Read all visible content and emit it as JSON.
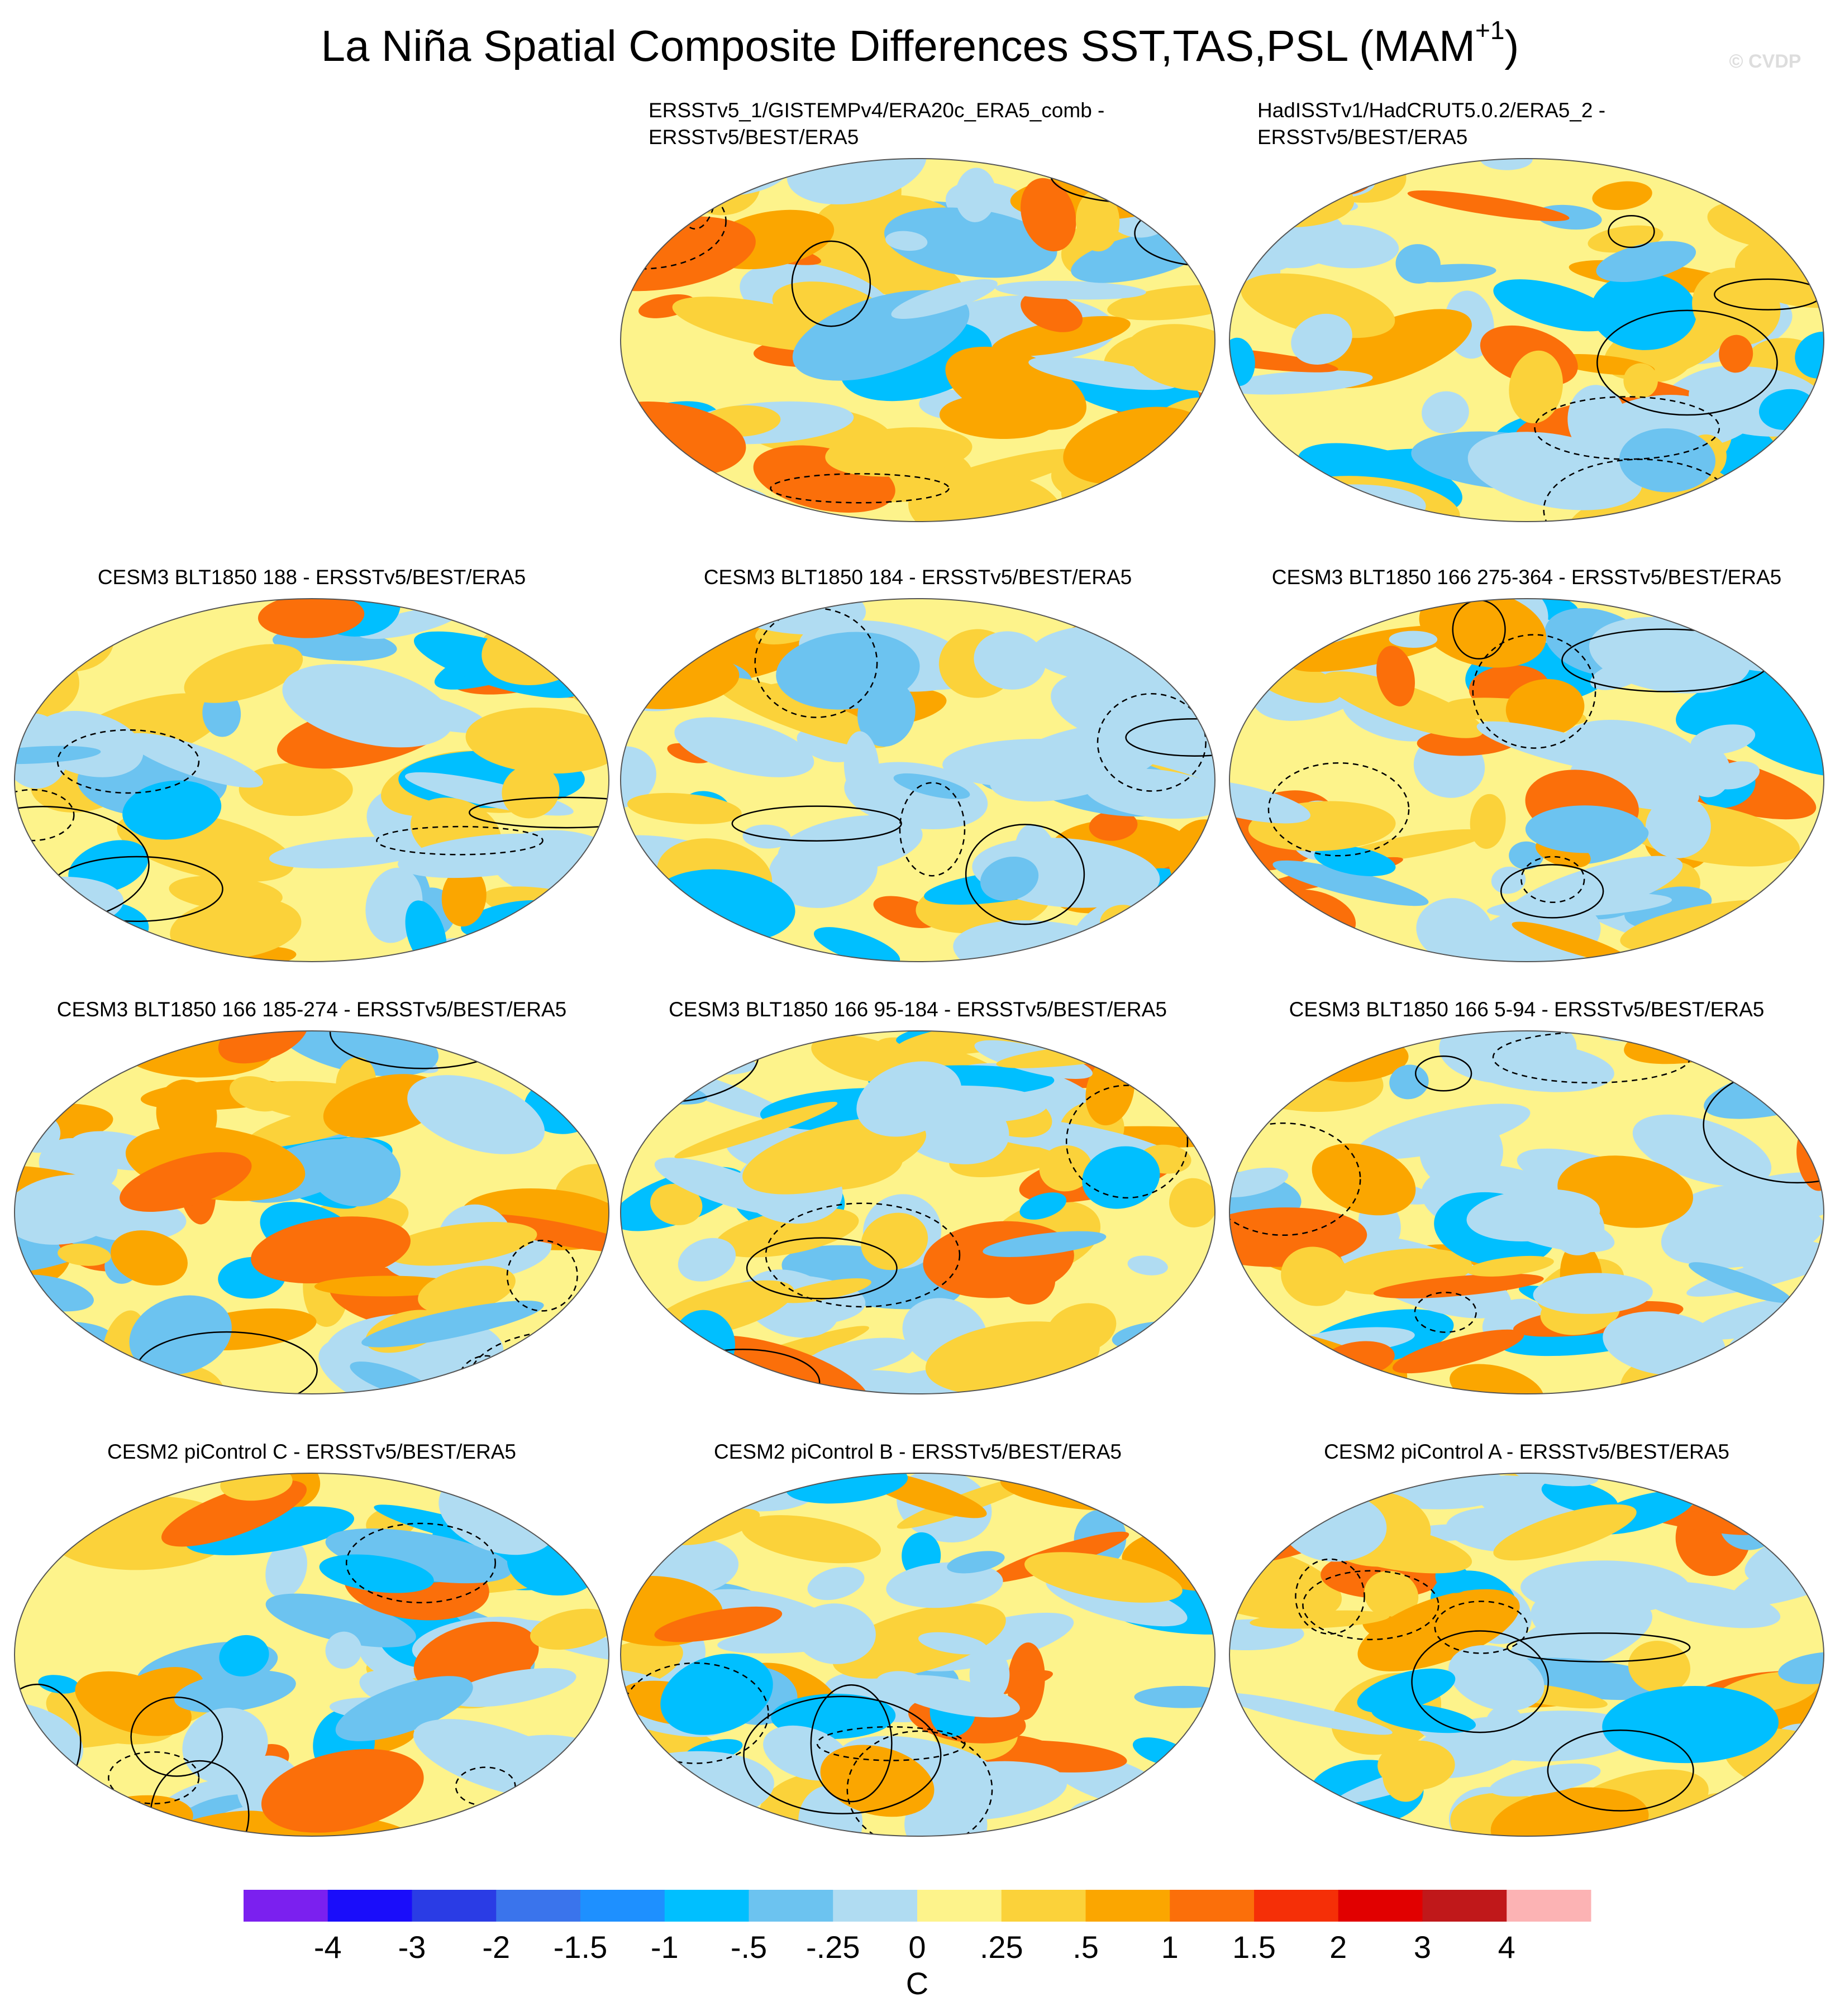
{
  "header": {
    "title": "La Niña Spatial Composite Differences SST,TAS,PSL (MAM",
    "title_superscript": "+1",
    "title_end": ")",
    "watermark": "© CVDP"
  },
  "panels": [
    {
      "title_lines": [
        "ERSSTv5_1/GISTEMPv4/ERA20c_ERA5_comb -",
        "ERSSTv5/BEST/ERA5"
      ]
    },
    {
      "title_lines": [
        "HadISSTv1/HadCRUT5.0.2/ERA5_2 -",
        "ERSSTv5/BEST/ERA5"
      ]
    },
    {
      "title_lines": [
        "CESM3 BLT1850 188 - ERSSTv5/BEST/ERA5"
      ]
    },
    {
      "title_lines": [
        "CESM3 BLT1850 184 - ERSSTv5/BEST/ERA5"
      ]
    },
    {
      "title_lines": [
        "CESM3 BLT1850 166 275-364 - ERSSTv5/BEST/ERA5"
      ]
    },
    {
      "title_lines": [
        "CESM3 BLT1850 166 185-274 - ERSSTv5/BEST/ERA5"
      ]
    },
    {
      "title_lines": [
        "CESM3 BLT1850 166 95-184 - ERSSTv5/BEST/ERA5"
      ]
    },
    {
      "title_lines": [
        "CESM3 BLT1850 166 5-94 - ERSSTv5/BEST/ERA5"
      ]
    },
    {
      "title_lines": [
        "CESM2 piControl C - ERSSTv5/BEST/ERA5"
      ]
    },
    {
      "title_lines": [
        "CESM2 piControl B - ERSSTv5/BEST/ERA5"
      ]
    },
    {
      "title_lines": [
        "CESM2 piControl A - ERSSTv5/BEST/ERA5"
      ]
    }
  ],
  "colorbar": {
    "colors": [
      "#7b20ef",
      "#1a0dfa",
      "#2a3ce5",
      "#3a74ec",
      "#1e90ff",
      "#00bfff",
      "#6cc3f0",
      "#b0dcf2",
      "#fdf38b",
      "#fbd23a",
      "#fba600",
      "#fb6f0a",
      "#f52f07",
      "#e10000",
      "#c0181a",
      "#fcb3b4"
    ],
    "ticks": [
      -4,
      -3,
      -2,
      -1.5,
      -1,
      {
        "value": -0.5,
        "label": "-.5"
      },
      {
        "value": -0.25,
        "label": "-.25"
      },
      0,
      {
        "value": 0.25,
        "label": ".25"
      },
      {
        "value": 0.5,
        "label": ".5"
      },
      1,
      1.5,
      2,
      3,
      4
    ],
    "unit": "C"
  }
}
